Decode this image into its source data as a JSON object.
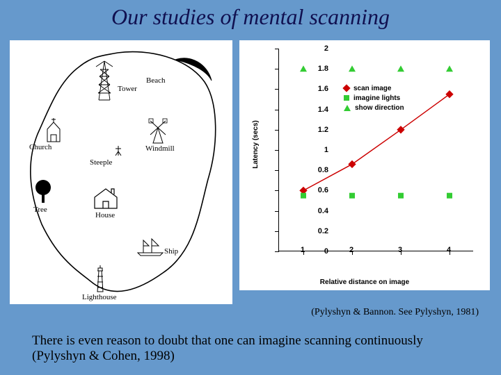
{
  "title": "Our studies of mental scanning",
  "title_fontsize": 32,
  "title_color": "#101050",
  "background_color": "#6699cc",
  "panel_bg": "#ffffff",
  "citation": "(Pylyshyn & Bannon. See Pylyshyn, 1981)",
  "bottom_text": "There is even reason to doubt that one can imagine scanning continuously (Pylyshyn & Cohen, 1998)",
  "bottom_fontsize": 19,
  "map": {
    "labels": {
      "beach": "Beach",
      "tower": "Tower",
      "church": "Church",
      "windmill": "Windmill",
      "steeple": "Steeple",
      "tree": "Tree",
      "house": "House",
      "ship": "Ship",
      "lighthouse": "Lighthouse"
    },
    "label_fontsize": 11,
    "outline_color": "#000000",
    "outline_width": 1.5
  },
  "chart": {
    "type": "scatter-line",
    "x_axis_label": "Relative distance on image",
    "y_axis_label": "Latency (secs)",
    "label_fontsize": 10,
    "tick_fontsize": 11,
    "xlim": [
      0.5,
      4.5
    ],
    "ylim": [
      0,
      2
    ],
    "ytick_step": 0.2,
    "yticks": [
      "0",
      "0.2",
      "0.4",
      "0.6",
      "0.8",
      "1",
      "1.2",
      "1.4",
      "1.6",
      "1.8",
      "2"
    ],
    "xticks": [
      "1",
      "2",
      "3",
      "4"
    ],
    "axis_color": "#000000",
    "background_color": "#ffffff",
    "series": [
      {
        "name": "scan image",
        "legend": "scan image",
        "marker": "diamond",
        "color": "#cc0000",
        "line": true,
        "line_width": 1.5,
        "x": [
          1,
          2,
          3,
          4
        ],
        "y": [
          0.6,
          0.86,
          1.2,
          1.55
        ]
      },
      {
        "name": "imagine lights",
        "legend": "imagine lights",
        "marker": "square",
        "color": "#33cc33",
        "line": false,
        "x": [
          1,
          2,
          3,
          4
        ],
        "y": [
          0.55,
          0.55,
          0.55,
          0.55
        ]
      },
      {
        "name": "show direction",
        "legend": "show direction",
        "marker": "triangle",
        "color": "#33cc33",
        "line": false,
        "x": [
          1,
          2,
          3,
          4
        ],
        "y": [
          1.8,
          1.8,
          1.8,
          1.8
        ]
      }
    ]
  }
}
